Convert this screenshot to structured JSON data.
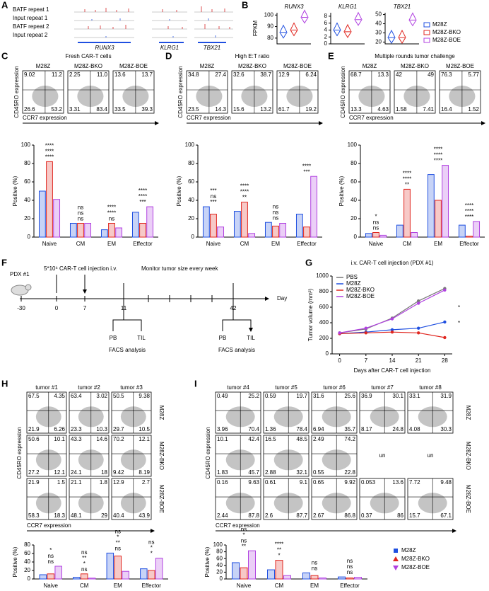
{
  "panel_letters": [
    "A",
    "B",
    "C",
    "D",
    "E",
    "F",
    "G",
    "H",
    "I"
  ],
  "tracks": {
    "labels": [
      "BATF repeat 1",
      "Input repeat 1",
      "BATF repeat 2",
      "Input repeat 2"
    ],
    "label_colors": [
      "#d62728",
      "#000000",
      "#d62728",
      "#000000"
    ],
    "genes": [
      "RUNX3",
      "KLRG1",
      "TBX21"
    ]
  },
  "diagram": {
    "pdx": "PDX #1",
    "injection": "5*10⁶ CAR-T cell injection i.v.",
    "monitor": "Monitor tumor size every week",
    "days": [
      "-30",
      "0",
      "7",
      "11",
      "42"
    ],
    "day_unit": "Day",
    "samples": [
      "PB",
      "TIL"
    ],
    "analysis": "FACS analysis"
  },
  "chart_data": [
    {
      "type": "violin",
      "title": "RUNX3",
      "ylabel": "FPKM",
      "ylim": [
        75,
        102
      ],
      "yticks": [
        80,
        90,
        100
      ],
      "series": [
        {
          "name": "M28Z",
          "color": "#1f4fe0",
          "values": [
            85
          ]
        },
        {
          "name": "M28Z-BKO",
          "color": "#e0261f",
          "values": [
            87
          ]
        },
        {
          "name": "M28Z-BOE",
          "color": "#b040e0",
          "values": [
            98
          ]
        }
      ]
    },
    {
      "type": "violin",
      "title": "KLRG1",
      "ylim": [
        0,
        9
      ],
      "yticks": [
        0,
        2,
        4,
        6,
        8
      ],
      "values": [
        4,
        3.5,
        7
      ]
    },
    {
      "type": "violin",
      "title": "TBX21",
      "ylim": [
        18,
        52
      ],
      "yticks": [
        20,
        30,
        40,
        50
      ],
      "values": [
        25,
        25,
        44
      ]
    },
    {
      "type": "bar",
      "title": "Fresh CAR-T cells",
      "ylabel": "Positive (%)",
      "categories": [
        "Naive",
        "CM",
        "EM",
        "Effector"
      ],
      "ylim": [
        0,
        100
      ],
      "yticks": [
        0,
        20,
        40,
        60,
        80,
        100
      ],
      "series": [
        {
          "name": "M28Z",
          "color": "#1f4fe0",
          "values": [
            50,
            15,
            8,
            27
          ]
        },
        {
          "name": "M28Z-BKO",
          "color": "#e0261f",
          "values": [
            82,
            15,
            15,
            15
          ]
        },
        {
          "name": "M28Z-BOE",
          "color": "#b040e0",
          "values": [
            41,
            15,
            10,
            33
          ]
        }
      ],
      "annotations": [
        [
          "****",
          "****",
          "****"
        ],
        [
          "ns",
          "ns",
          "ns"
        ],
        [
          "ns",
          "****",
          "****"
        ],
        [
          "***",
          "****",
          "****"
        ]
      ],
      "flow": {
        "xlabel": "CCR7 expression",
        "ylabel": "CD45RO expression",
        "plots": [
          [
            "9.02",
            "11.2",
            "26.6",
            "53.2"
          ],
          [
            "2.25",
            "11.0",
            "3.31",
            "83.4"
          ],
          [
            "13.6",
            "13.7",
            "33.5",
            "39.3"
          ]
        ]
      }
    },
    {
      "type": "bar",
      "title": "High E:T ratio",
      "ylabel": "Positive (%)",
      "categories": [
        "Naive",
        "CM",
        "EM",
        "Effector"
      ],
      "ylim": [
        0,
        100
      ],
      "yticks": [
        0,
        20,
        40,
        60,
        80,
        100
      ],
      "series": [
        {
          "name": "M28Z",
          "color": "#1f4fe0",
          "values": [
            33,
            28,
            16,
            25
          ]
        },
        {
          "name": "M28Z-BKO",
          "color": "#e0261f",
          "values": [
            25,
            38,
            12,
            11
          ]
        },
        {
          "name": "M28Z-BOE",
          "color": "#b040e0",
          "values": [
            11,
            4,
            15,
            66
          ]
        }
      ],
      "annotations": [
        [
          "***",
          "ns",
          "***"
        ],
        [
          "**",
          "****",
          "****"
        ],
        [
          "ns",
          "ns",
          "ns"
        ],
        [
          "***",
          "****"
        ]
      ],
      "flow": {
        "xlabel": "CCR7 expression",
        "ylabel": "CD45RO expression",
        "plots": [
          [
            "34.8",
            "27.4",
            "23.5",
            "14.3"
          ],
          [
            "32.6",
            "38.7",
            "15.6",
            "13.2"
          ],
          [
            "12.9",
            "6.24",
            "61.7",
            "19.2"
          ]
        ]
      }
    },
    {
      "type": "bar",
      "title": "Multiple rounds tumor challenge",
      "ylabel": "Positive (%)",
      "categories": [
        "Naive",
        "CM",
        "EM",
        "Effector"
      ],
      "ylim": [
        0,
        100
      ],
      "yticks": [
        0,
        20,
        40,
        60,
        80,
        100
      ],
      "series": [
        {
          "name": "M28Z",
          "color": "#1f4fe0",
          "values": [
            4,
            13,
            68,
            13
          ]
        },
        {
          "name": "M28Z-BKO",
          "color": "#e0261f",
          "values": [
            5,
            52,
            40,
            1
          ]
        },
        {
          "name": "M28Z-BOE",
          "color": "#b040e0",
          "values": [
            2,
            5,
            78,
            17
          ]
        }
      ],
      "annotations": [
        [
          "ns",
          "ns",
          "*"
        ],
        [
          "**",
          "****",
          "****"
        ],
        [
          "****",
          "****",
          "****"
        ],
        [
          "****",
          "****",
          "****"
        ]
      ],
      "flow": {
        "xlabel": "CCR7 expression",
        "ylabel": "CD45RO expression",
        "plots": [
          [
            "68.7",
            "13.3",
            "13.3",
            "4.63"
          ],
          [
            "42",
            "49",
            "1.58",
            "7.41"
          ],
          [
            "76.3",
            "5.77",
            "16.4",
            "1.52"
          ]
        ]
      }
    },
    {
      "type": "line",
      "title": "i.v. CAR-T cell injection (PDX #1)",
      "xlabel": "Days after CAR-T cell injection",
      "ylabel": "Tumor volume (mm³)",
      "x": [
        0,
        7,
        14,
        21,
        28
      ],
      "xlim": [
        -2,
        30
      ],
      "xticks": [
        0,
        7,
        14,
        21,
        28
      ],
      "ylim": [
        0,
        1000
      ],
      "yticks": [
        0,
        200,
        400,
        600,
        800,
        1000
      ],
      "series": [
        {
          "name": "PBS",
          "color": "#777777",
          "values": [
            270,
            320,
            460,
            680,
            840
          ]
        },
        {
          "name": "M28Z",
          "color": "#1f4fe0",
          "values": [
            260,
            280,
            310,
            330,
            410
          ]
        },
        {
          "name": "M28Z-BKO",
          "color": "#e0261f",
          "values": [
            260,
            270,
            280,
            270,
            210
          ]
        },
        {
          "name": "M28Z-BOE",
          "color": "#b040e0",
          "values": [
            270,
            330,
            450,
            650,
            820
          ]
        }
      ],
      "annotations": [
        "*",
        "*"
      ]
    },
    {
      "type": "bar",
      "ylabel": "Positive (%)",
      "categories": [
        "Naive",
        "CM",
        "EM",
        "Effector"
      ],
      "ylim": [
        0,
        80
      ],
      "yticks": [
        0,
        20,
        40,
        60,
        80
      ],
      "series": [
        {
          "name": "M28Z",
          "color": "#1f4fe0",
          "values": [
            10,
            4,
            61,
            24
          ]
        },
        {
          "name": "M28Z-BKO",
          "color": "#e0261f",
          "values": [
            12,
            12,
            54,
            20
          ]
        },
        {
          "name": "M28Z-BOE",
          "color": "#b040e0",
          "values": [
            30,
            2,
            18,
            49
          ]
        }
      ],
      "annotations": [
        [
          "ns",
          "ns",
          "*"
        ],
        [
          "ns",
          "*",
          "**",
          "ns"
        ],
        [
          "ns",
          "**",
          "*",
          "ns"
        ],
        [
          "*",
          "*",
          "ns"
        ]
      ],
      "flow": {
        "xlabel": "CCR7 expression",
        "ylabel": "CD45RO expression",
        "columns": [
          "tumor #1",
          "tumor #2",
          "tumor #3"
        ],
        "plots": [
          [
            [
              "67.5",
              "4.35",
              "21.9",
              "6.26"
            ],
            [
              "63.4",
              "3.02",
              "23.3",
              "10.3"
            ],
            [
              "50.5",
              "9.38",
              "29.7",
              "10.5"
            ]
          ],
          [
            [
              "50.6",
              "10.1",
              "27.2",
              "12.1"
            ],
            [
              "43.3",
              "14.6",
              "24.1",
              "18"
            ],
            [
              "70.2",
              "12.1",
              "9.42",
              "8.19"
            ]
          ],
          [
            [
              "21.9",
              "1.5",
              "58.3",
              "18.3"
            ],
            [
              "21.1",
              "1.8",
              "48.1",
              "29"
            ],
            [
              "12.9",
              "2.7",
              "40.4",
              "43.9"
            ]
          ]
        ]
      }
    },
    {
      "type": "bar",
      "ylabel": "Positive (%)",
      "categories": [
        "Naive",
        "CM",
        "EM",
        "Effector"
      ],
      "ylim": [
        0,
        100
      ],
      "yticks": [
        0,
        20,
        40,
        60,
        80,
        100
      ],
      "legend": true,
      "series": [
        {
          "name": "M28Z",
          "color": "#1f4fe0",
          "values": [
            48,
            27,
            18,
            6
          ]
        },
        {
          "name": "M28Z-BKO",
          "color": "#e0261f",
          "values": [
            33,
            55,
            10,
            3
          ]
        },
        {
          "name": "M28Z-BOE",
          "color": "#b040e0",
          "values": [
            83,
            10,
            3,
            5
          ]
        }
      ],
      "annotations": [
        [
          "**",
          "ns",
          "*",
          "ns"
        ],
        [
          "*",
          "**",
          "****"
        ],
        [
          "ns",
          "ns"
        ],
        [
          "ns",
          "ns",
          "ns"
        ]
      ],
      "flow": {
        "xlabel": "CCR7 expression",
        "ylabel": "CD45RO expression",
        "columns": [
          "tumor #4",
          "tumor #5",
          "tumor #6",
          "tumor #7",
          "tumor #8"
        ],
        "plots": [
          [
            [
              "0.49",
              "25.2",
              "3.96",
              "70.4"
            ],
            [
              "0.59",
              "19.7",
              "1.36",
              "78.4"
            ],
            [
              "31.6",
              "25.6",
              "6.94",
              "35.7"
            ],
            [
              "36.9",
              "30.1",
              "8.17",
              "24.8"
            ],
            [
              "33.1",
              "31.9",
              "4.08",
              "30.3"
            ]
          ],
          [
            [
              "10.1",
              "42.4",
              "1.83",
              "45.7"
            ],
            [
              "16.5",
              "48.5",
              "2.88",
              "32.1"
            ],
            [
              "2.49",
              "74.2",
              "0.55",
              "22.8"
            ],
            "un",
            "un"
          ],
          [
            [
              "0.16",
              "9.63",
              "2.44",
              "87.8"
            ],
            [
              "0.61",
              "9.1",
              "2.6",
              "87.7"
            ],
            [
              "0.65",
              "9.92",
              "2.67",
              "86.8"
            ],
            [
              "0.053",
              "13.6",
              "0.37",
              "86"
            ],
            [
              "7.72",
              "9.48",
              "15.7",
              "67.1"
            ]
          ]
        ]
      }
    }
  ]
}
